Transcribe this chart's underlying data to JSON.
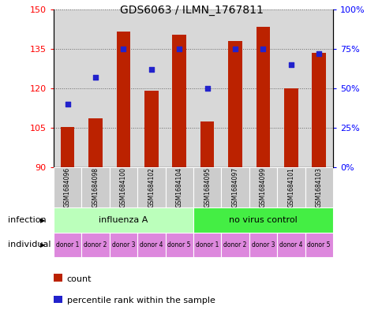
{
  "title": "GDS6063 / ILMN_1767811",
  "samples": [
    "GSM1684096",
    "GSM1684098",
    "GSM1684100",
    "GSM1684102",
    "GSM1684104",
    "GSM1684095",
    "GSM1684097",
    "GSM1684099",
    "GSM1684101",
    "GSM1684103"
  ],
  "bar_values": [
    105.2,
    108.5,
    141.5,
    119.0,
    140.5,
    107.5,
    138.0,
    143.5,
    120.0,
    133.5
  ],
  "dot_values_pct": [
    40,
    57,
    75,
    62,
    75,
    50,
    75,
    75,
    65,
    72
  ],
  "ylim_left": [
    90,
    150
  ],
  "ylim_right": [
    0,
    100
  ],
  "yticks_left": [
    90,
    105,
    120,
    135,
    150
  ],
  "yticks_right": [
    0,
    25,
    50,
    75,
    100
  ],
  "bar_color": "#bb2200",
  "dot_color": "#2222cc",
  "bg_color": "#d8d8d8",
  "infection_groups": [
    {
      "label": "influenza A",
      "start": 0,
      "end": 5,
      "color": "#bbffbb"
    },
    {
      "label": "no virus control",
      "start": 5,
      "end": 10,
      "color": "#44ee44"
    }
  ],
  "individual_labels": [
    "donor 1",
    "donor 2",
    "donor 3",
    "donor 4",
    "donor 5",
    "donor 1",
    "donor 2",
    "donor 3",
    "donor 4",
    "donor 5"
  ],
  "individual_color": "#dd88dd",
  "legend_count_label": "count",
  "legend_pct_label": "percentile rank within the sample",
  "infection_row_label": "infection",
  "individual_row_label": "individual",
  "right_ytick_labels": [
    "0%",
    "25%",
    "50%",
    "75%",
    "100%"
  ],
  "sample_box_color": "#cccccc"
}
